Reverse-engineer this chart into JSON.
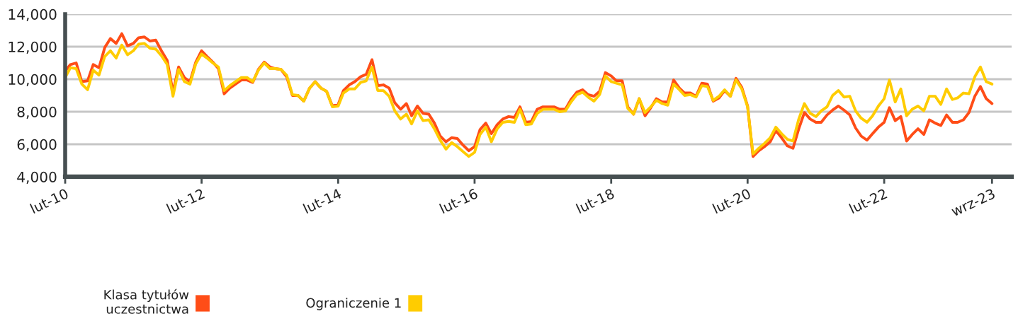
{
  "chart_data": {
    "type": "line",
    "x": [
      "2010-02",
      "2010-03",
      "2010-04",
      "2010-05",
      "2010-06",
      "2010-07",
      "2010-08",
      "2010-09",
      "2010-10",
      "2010-11",
      "2010-12",
      "2011-01",
      "2011-02",
      "2011-03",
      "2011-04",
      "2011-05",
      "2011-06",
      "2011-07",
      "2011-08",
      "2011-09",
      "2011-10",
      "2011-11",
      "2011-12",
      "2012-01",
      "2012-02",
      "2012-03",
      "2012-04",
      "2012-05",
      "2012-06",
      "2012-07",
      "2012-08",
      "2012-09",
      "2012-10",
      "2012-11",
      "2012-12",
      "2013-01",
      "2013-02",
      "2013-03",
      "2013-04",
      "2013-05",
      "2013-06",
      "2013-07",
      "2013-08",
      "2013-09",
      "2013-10",
      "2013-11",
      "2013-12",
      "2014-01",
      "2014-02",
      "2014-03",
      "2014-04",
      "2014-05",
      "2014-06",
      "2014-07",
      "2014-08",
      "2014-09",
      "2014-10",
      "2014-11",
      "2014-12",
      "2015-01",
      "2015-02",
      "2015-03",
      "2015-04",
      "2015-05",
      "2015-06",
      "2015-07",
      "2015-08",
      "2015-09",
      "2015-10",
      "2015-11",
      "2015-12",
      "2016-01",
      "2016-02",
      "2016-03",
      "2016-04",
      "2016-05",
      "2016-06",
      "2016-07",
      "2016-08",
      "2016-09",
      "2016-10",
      "2016-11",
      "2016-12",
      "2017-01",
      "2017-02",
      "2017-03",
      "2017-04",
      "2017-05",
      "2017-06",
      "2017-07",
      "2017-08",
      "2017-09",
      "2017-10",
      "2017-11",
      "2017-12",
      "2018-01",
      "2018-02",
      "2018-03",
      "2018-04",
      "2018-05",
      "2018-06",
      "2018-07",
      "2018-08",
      "2018-09",
      "2018-10",
      "2018-11",
      "2018-12",
      "2019-01",
      "2019-02",
      "2019-03",
      "2019-04",
      "2019-05",
      "2019-06",
      "2019-07",
      "2019-08",
      "2019-09",
      "2019-10",
      "2019-11",
      "2019-12",
      "2020-01",
      "2020-02",
      "2020-03",
      "2020-04",
      "2020-05",
      "2020-06",
      "2020-07",
      "2020-08",
      "2020-09",
      "2020-10",
      "2020-11",
      "2020-12",
      "2021-01",
      "2021-02",
      "2021-03",
      "2021-04",
      "2021-05",
      "2021-06",
      "2021-07",
      "2021-08",
      "2021-09",
      "2021-10",
      "2021-11",
      "2021-12",
      "2022-01",
      "2022-02",
      "2022-03",
      "2022-04",
      "2022-05",
      "2022-06",
      "2022-07",
      "2022-08",
      "2022-09",
      "2022-10",
      "2022-11",
      "2022-12",
      "2023-01",
      "2023-02",
      "2023-03",
      "2023-04",
      "2023-05",
      "2023-06",
      "2023-07",
      "2023-08",
      "2023-09"
    ],
    "series": [
      {
        "name": "Klasa tytułów\nuczestnictwa",
        "color": "#ff4d17",
        "values": [
          10500,
          10900,
          11000,
          9850,
          9900,
          10900,
          10700,
          11950,
          12500,
          12200,
          12800,
          12050,
          12200,
          12550,
          12600,
          12350,
          12400,
          11750,
          11150,
          9200,
          10750,
          10100,
          9850,
          11050,
          11750,
          11400,
          11050,
          10650,
          9100,
          9450,
          9700,
          9950,
          9950,
          9800,
          10600,
          11050,
          10750,
          10650,
          10600,
          10150,
          9000,
          9000,
          8650,
          9450,
          9850,
          9450,
          9250,
          8350,
          8450,
          9300,
          9650,
          9850,
          10150,
          10300,
          11200,
          9600,
          9650,
          9450,
          8550,
          8150,
          8500,
          7750,
          8350,
          7900,
          7850,
          7300,
          6500,
          6150,
          6400,
          6350,
          5950,
          5600,
          5850,
          6900,
          7300,
          6650,
          7200,
          7550,
          7700,
          7650,
          8300,
          7350,
          7400,
          8150,
          8300,
          8300,
          8300,
          8150,
          8150,
          8750,
          9200,
          9350,
          9050,
          8950,
          9250,
          10400,
          10200,
          9900,
          9900,
          8300,
          7850,
          8800,
          7750,
          8250,
          8800,
          8600,
          8600,
          9950,
          9450,
          9150,
          9150,
          8950,
          9750,
          9700,
          8650,
          8850,
          9300,
          8950,
          10050,
          9500,
          8350,
          5250,
          5600,
          5850,
          6150,
          6850,
          6400,
          5900,
          5750,
          6950,
          7950,
          7550,
          7350,
          7350,
          7800,
          8100,
          8350,
          8100,
          7800,
          7000,
          6500,
          6250,
          6650,
          7050,
          7350,
          8250,
          7450,
          7700,
          6200,
          6600,
          6950,
          6600,
          7500,
          7300,
          7150,
          7800,
          7350,
          7350,
          7500,
          7950,
          8950,
          9550,
          8800,
          8500
        ]
      },
      {
        "name": "Ograniczenie 1",
        "color": "#ffcc00",
        "values": [
          10100,
          10700,
          10650,
          9700,
          9350,
          10550,
          10250,
          11400,
          11750,
          11300,
          12100,
          11500,
          11750,
          12150,
          12200,
          11900,
          11850,
          11450,
          10900,
          8950,
          10600,
          9850,
          9700,
          10950,
          11550,
          11300,
          11000,
          10750,
          9300,
          9600,
          9850,
          10100,
          10100,
          9850,
          10550,
          11000,
          10650,
          10650,
          10600,
          10250,
          9050,
          9000,
          8650,
          9450,
          9850,
          9450,
          9250,
          8300,
          8350,
          9150,
          9400,
          9400,
          9800,
          9900,
          10750,
          9300,
          9300,
          8950,
          8050,
          7550,
          7850,
          7250,
          8050,
          7450,
          7500,
          6950,
          6250,
          5700,
          6100,
          5850,
          5550,
          5250,
          5500,
          6600,
          7050,
          6150,
          6950,
          7350,
          7400,
          7350,
          8150,
          7200,
          7250,
          7900,
          8150,
          8150,
          8150,
          8000,
          8050,
          8600,
          9050,
          9200,
          8900,
          8650,
          9050,
          10200,
          9850,
          9750,
          9650,
          8200,
          7850,
          8800,
          7950,
          8300,
          8700,
          8500,
          8400,
          9700,
          9350,
          9000,
          9050,
          8900,
          9600,
          9550,
          8700,
          8950,
          9350,
          8950,
          9950,
          9400,
          8300,
          5400,
          5750,
          6050,
          6400,
          7050,
          6650,
          6300,
          6200,
          7550,
          8500,
          7900,
          7700,
          8050,
          8300,
          9000,
          9300,
          8900,
          8950,
          8050,
          7600,
          7350,
          7750,
          8350,
          8800,
          9950,
          8600,
          9400,
          7750,
          8150,
          8350,
          8050,
          8950,
          8950,
          8450,
          9400,
          8750,
          8850,
          9150,
          9100,
          10150,
          10750,
          9850,
          9700
        ]
      }
    ],
    "xlim": [
      "2010-02",
      "2023-12-15"
    ],
    "xticks": [
      {
        "value": "2010-02",
        "label": "lut-10"
      },
      {
        "value": "2012-02",
        "label": "lut-12"
      },
      {
        "value": "2014-02",
        "label": "lut-14"
      },
      {
        "value": "2016-02",
        "label": "lut-16"
      },
      {
        "value": "2018-02",
        "label": "lut-18"
      },
      {
        "value": "2020-02",
        "label": "lut-20"
      },
      {
        "value": "2022-02",
        "label": "lut-22"
      },
      {
        "value": "2023-09",
        "label": "wrz-23"
      }
    ],
    "ylim": [
      4000,
      14000
    ],
    "yticks": [
      {
        "value": 4000,
        "label": "4,000"
      },
      {
        "value": 6000,
        "label": "6,000"
      },
      {
        "value": 8000,
        "label": "8,000"
      },
      {
        "value": 10000,
        "label": "10,000"
      },
      {
        "value": 12000,
        "label": "12,000"
      },
      {
        "value": 14000,
        "label": "14,000"
      }
    ],
    "grid": "y",
    "legend": "bottom",
    "marker": "none",
    "line_style": "solid"
  }
}
